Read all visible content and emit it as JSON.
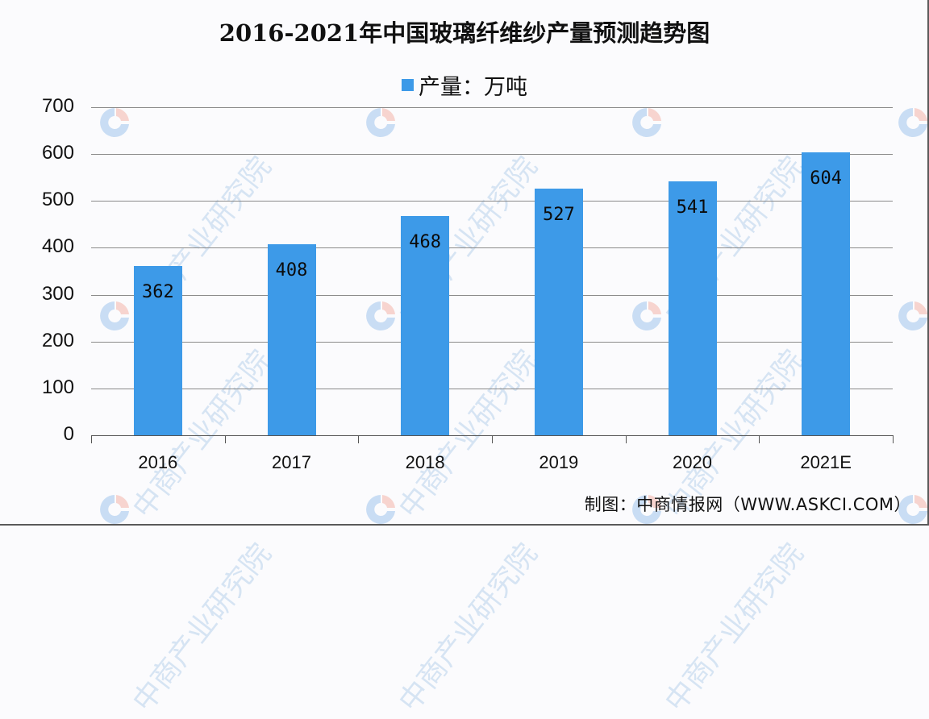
{
  "title": "2016-2021年中国玻璃纤维纱产量预测趋势图",
  "legend": {
    "label": "产量：万吨",
    "color": "#3d9ae8"
  },
  "source": "制图：中商情报网（WWW.ASKCI.COM）",
  "watermark": {
    "text": "中商产业研究院"
  },
  "axis": {
    "y_ticks": [
      "0",
      "100",
      "200",
      "300",
      "400",
      "500",
      "600",
      "700"
    ],
    "x_ticks": [
      "2016",
      "2017",
      "2018",
      "2019",
      "2020",
      "2021E"
    ]
  },
  "bars": [
    {
      "category": "2016",
      "value": 362,
      "label": "362"
    },
    {
      "category": "2017",
      "value": 408,
      "label": "408"
    },
    {
      "category": "2018",
      "value": 468,
      "label": "468"
    },
    {
      "category": "2019",
      "value": 527,
      "label": "527"
    },
    {
      "category": "2020",
      "value": 541,
      "label": "541"
    },
    {
      "category": "2021E",
      "value": 604,
      "label": "604"
    }
  ],
  "chart_data": {
    "type": "bar",
    "title": "2016-2021年中国玻璃纤维纱产量预测趋势图",
    "categories": [
      "2016",
      "2017",
      "2018",
      "2019",
      "2020",
      "2021E"
    ],
    "series": [
      {
        "name": "产量：万吨",
        "values": [
          362,
          408,
          468,
          527,
          541,
          604
        ],
        "color": "#3d9ae8"
      }
    ],
    "xlabel": "",
    "ylabel": "",
    "ylim": [
      0,
      700
    ],
    "y_ticks": [
      0,
      100,
      200,
      300,
      400,
      500,
      600,
      700
    ],
    "grid": true,
    "legend_position": "top",
    "data_labels": true,
    "source": "制图：中商情报网（WWW.ASKCI.COM）"
  }
}
